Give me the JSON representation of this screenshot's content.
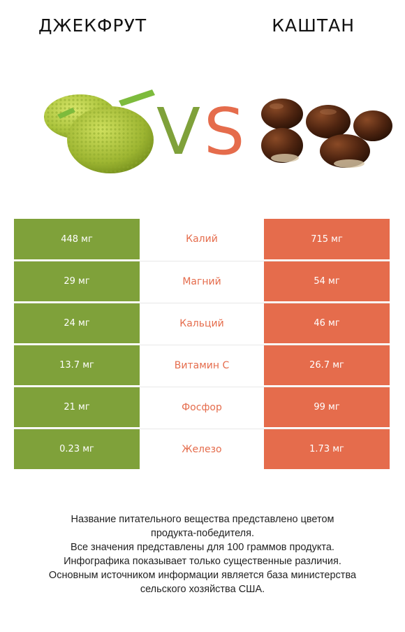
{
  "left": {
    "name": "Джекфрут",
    "icon": "jackfruit-image",
    "color": "#7fa13a"
  },
  "right": {
    "name": "Каштан",
    "icon": "chestnut-image",
    "color": "#e56c4c"
  },
  "vs": {
    "v": "V",
    "s": "S"
  },
  "chart_data": {
    "type": "table",
    "columns": [
      "Джекфрут",
      "",
      "Каштан"
    ],
    "rows": [
      {
        "nutrient": "Калий",
        "left": "448 мг",
        "right": "715 мг",
        "winner": "right"
      },
      {
        "nutrient": "Магний",
        "left": "29 мг",
        "right": "54 мг",
        "winner": "right"
      },
      {
        "nutrient": "Кальций",
        "left": "24 мг",
        "right": "46 мг",
        "winner": "right"
      },
      {
        "nutrient": "Витамин С",
        "left": "13.7 мг",
        "right": "26.7 мг",
        "winner": "right"
      },
      {
        "nutrient": "Фосфор",
        "left": "21 мг",
        "right": "99 мг",
        "winner": "right"
      },
      {
        "nutrient": "Железо",
        "left": "0.23 мг",
        "right": "1.73 мг",
        "winner": "right"
      }
    ]
  },
  "footnote": [
    "Название питательного вещества представлено цветом",
    "продукта-победителя.",
    "Все значения представлены для 100 граммов продукта.",
    "Инфографика показывает только существенные различия.",
    "Основным источником информации является база министерства",
    "сельского хозяйства США."
  ]
}
